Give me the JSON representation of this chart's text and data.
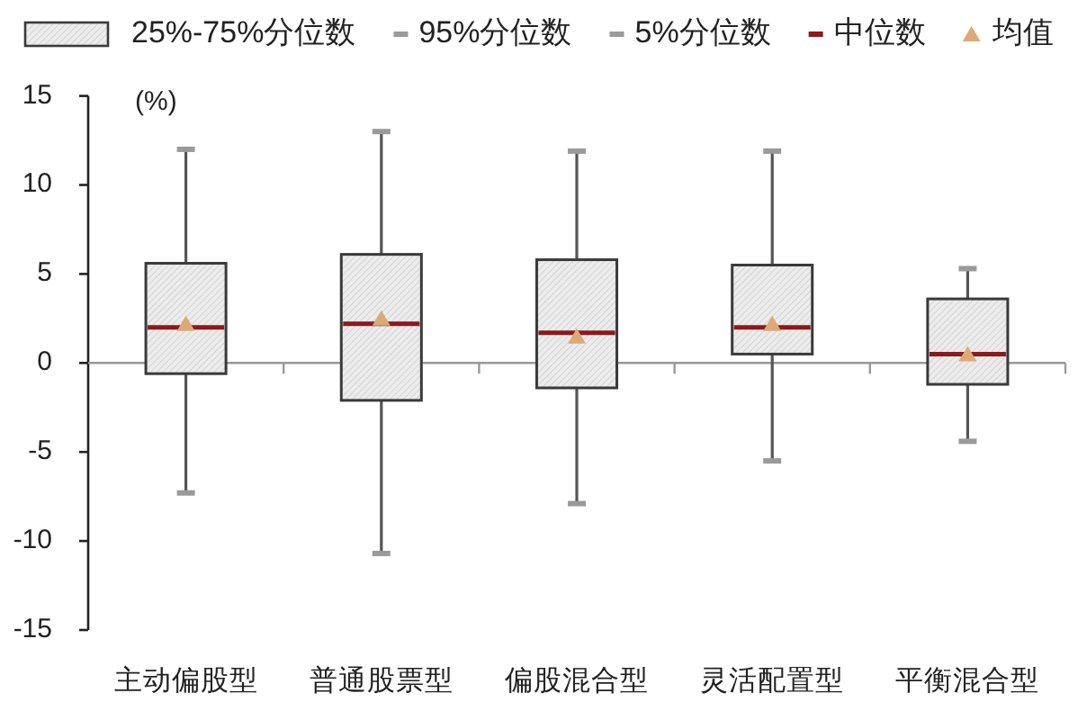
{
  "chart_data": {
    "type": "box",
    "ylabel": "(%)",
    "categories": [
      "主动偏股型",
      "普通股票型",
      "偏股混合型",
      "灵活配置型",
      "平衡混合型"
    ],
    "series": [
      {
        "name": "25%-75%分位数",
        "color": "#ececec",
        "boxes": [
          {
            "low": -7.3,
            "q1": -0.6,
            "median": 2.0,
            "q3": 5.6,
            "high": 12.0,
            "mean": 2.2
          },
          {
            "low": -10.7,
            "q1": -2.1,
            "median": 2.2,
            "q3": 6.1,
            "high": 13.0,
            "mean": 2.5
          },
          {
            "low": -7.9,
            "q1": -1.4,
            "median": 1.7,
            "q3": 5.8,
            "high": 11.9,
            "mean": 1.5
          },
          {
            "low": -5.5,
            "q1": 0.5,
            "median": 2.0,
            "q3": 5.5,
            "high": 11.9,
            "mean": 2.2
          },
          {
            "low": -4.4,
            "q1": -1.2,
            "median": 0.5,
            "q3": 3.6,
            "high": 5.3,
            "mean": 0.5
          }
        ]
      }
    ],
    "annotations": [
      "95%分位数",
      "5%分位数",
      "中位数",
      "均值"
    ],
    "marker": "triangle",
    "ylim": [
      -15,
      15
    ],
    "yticks": [
      -15,
      -10,
      -5,
      0,
      5,
      10,
      15
    ],
    "legend": "top",
    "grid": false
  }
}
